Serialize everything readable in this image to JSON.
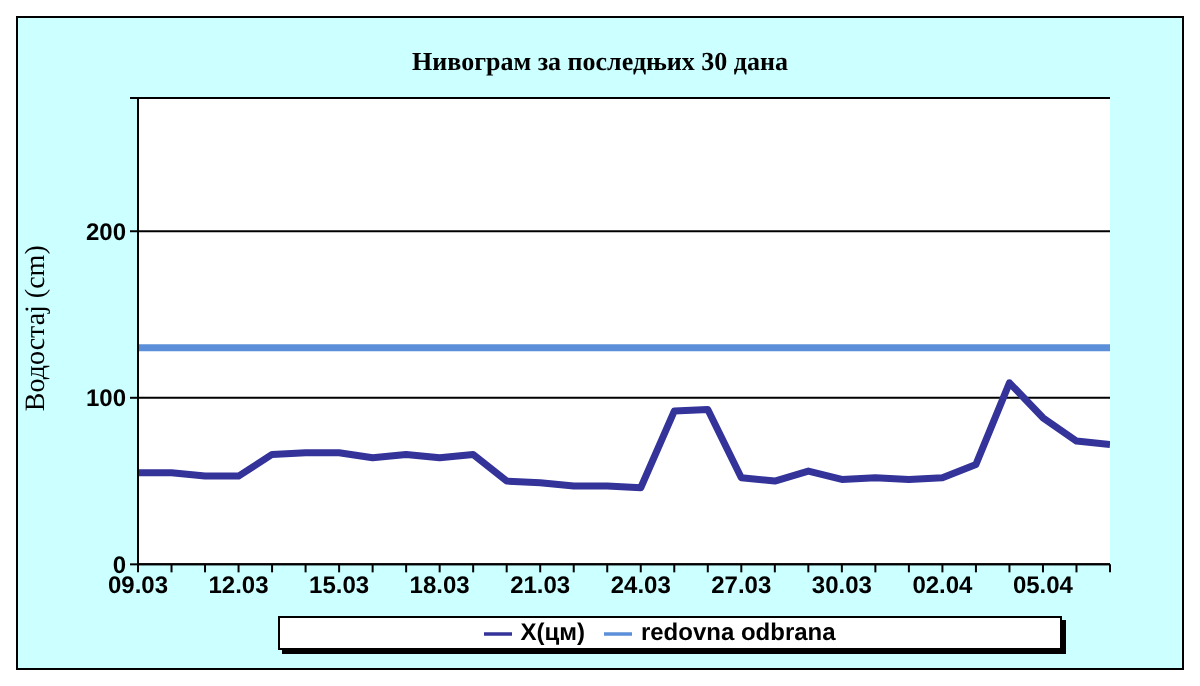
{
  "chart_data": {
    "type": "line",
    "title": "Нивограм за последњих 30 дана",
    "ylabel": "Водостај (cm)",
    "categories": [
      "09.03",
      null,
      null,
      "12.03",
      null,
      null,
      "15.03",
      null,
      null,
      "18.03",
      null,
      null,
      "21.03",
      null,
      null,
      "24.03",
      null,
      null,
      "27.03",
      null,
      null,
      "30.03",
      null,
      null,
      "02.04",
      null,
      null,
      "05.04",
      null,
      null
    ],
    "series": [
      {
        "name": "X(цм)",
        "color": "#333399",
        "values": [
          55,
          55,
          53,
          53,
          66,
          67,
          67,
          64,
          66,
          64,
          66,
          50,
          49,
          47,
          47,
          46,
          92,
          93,
          52,
          50,
          56,
          51,
          52,
          51,
          52,
          60,
          109,
          88,
          74,
          72
        ]
      },
      {
        "name": "redovna odbrana",
        "color": "#5b8fd9",
        "values": [
          130,
          130,
          130,
          130,
          130,
          130,
          130,
          130,
          130,
          130,
          130,
          130,
          130,
          130,
          130,
          130,
          130,
          130,
          130,
          130,
          130,
          130,
          130,
          130,
          130,
          130,
          130,
          130,
          130,
          130
        ]
      }
    ],
    "ylim": [
      0,
      280
    ],
    "yticks": [
      0,
      100,
      200,
      {
        "value": 280,
        "label": null
      }
    ],
    "grid": "y",
    "legend": "bottom",
    "marker": "none",
    "line_style": "solid"
  }
}
